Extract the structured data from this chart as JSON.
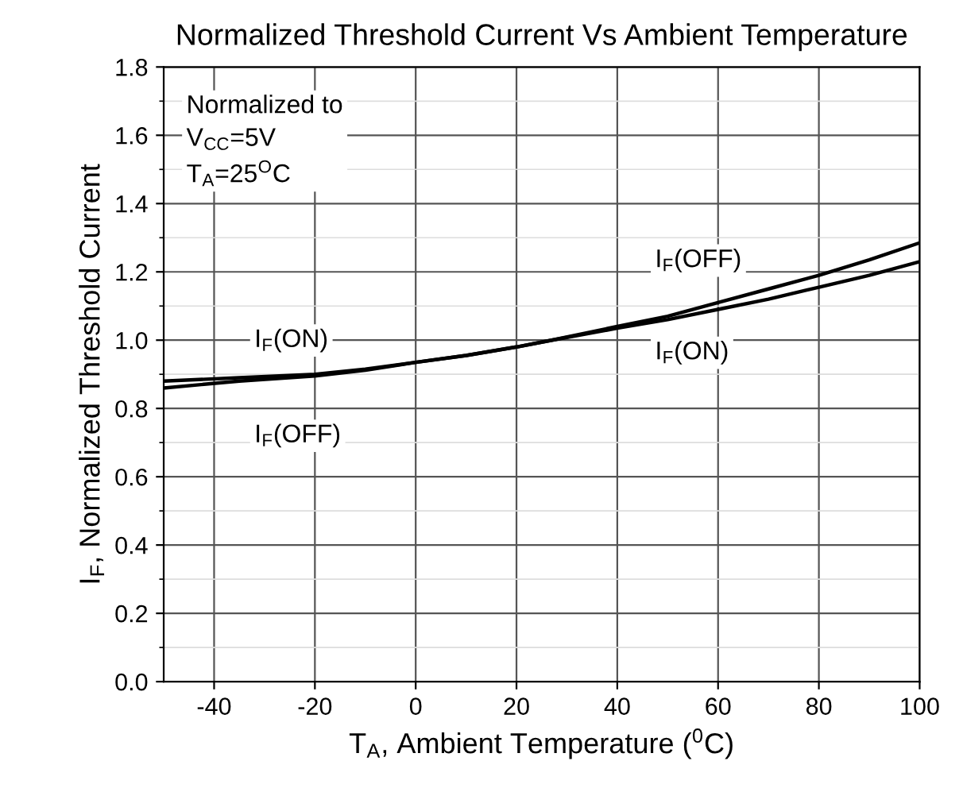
{
  "chart_data": {
    "type": "line",
    "title": "Normalized Threshold Current Vs Ambient Temperature",
    "xlabel": "T$_{A}$, Ambient Temperature ($^{0}$C)",
    "ylabel": "I$_{F}$, Normalized Threshold Current",
    "series": [
      {
        "color": "#000000",
        "x": [
          -50,
          -35,
          -20,
          -10,
          0,
          10,
          20,
          27,
          40,
          50,
          60,
          70,
          80,
          90,
          100
        ],
        "values": [
          0.88,
          0.89,
          0.9,
          0.915,
          0.935,
          0.955,
          0.98,
          1.0,
          1.035,
          1.06,
          1.09,
          1.12,
          1.155,
          1.19,
          1.23
        ]
      },
      {
        "color": "#000000",
        "x": [
          -50,
          -35,
          -20,
          -10,
          0,
          10,
          20,
          27,
          40,
          50,
          60,
          70,
          80,
          90,
          100
        ],
        "values": [
          0.86,
          0.88,
          0.895,
          0.912,
          0.935,
          0.955,
          0.98,
          1.0,
          1.04,
          1.07,
          1.11,
          1.15,
          1.19,
          1.235,
          1.285
        ]
      }
    ],
    "annotations": [
      "Normalized to\nV$_{CC}$=5V\nT$_{A}$=25$^{O}$C",
      "I$_{F}$(ON)",
      "I$_{F}$(OFF)",
      "I$_{F}$(OFF)",
      "I$_{F}$(ON)"
    ],
    "xlim": [
      -50,
      100
    ],
    "xticks": [
      -40,
      -20,
      0,
      20,
      40,
      60,
      80,
      100
    ],
    "ylim": [
      0.0,
      1.8
    ],
    "yticks": [
      {
        "value": 0.0,
        "label": "0.0"
      },
      0.2,
      0.4,
      0.6,
      0.8,
      {
        "value": 1.0,
        "label": "1.0"
      },
      1.2,
      1.4,
      1.6,
      1.8
    ],
    "grid": true,
    "legend": false,
    "marker": "none",
    "line_style": "solid"
  }
}
